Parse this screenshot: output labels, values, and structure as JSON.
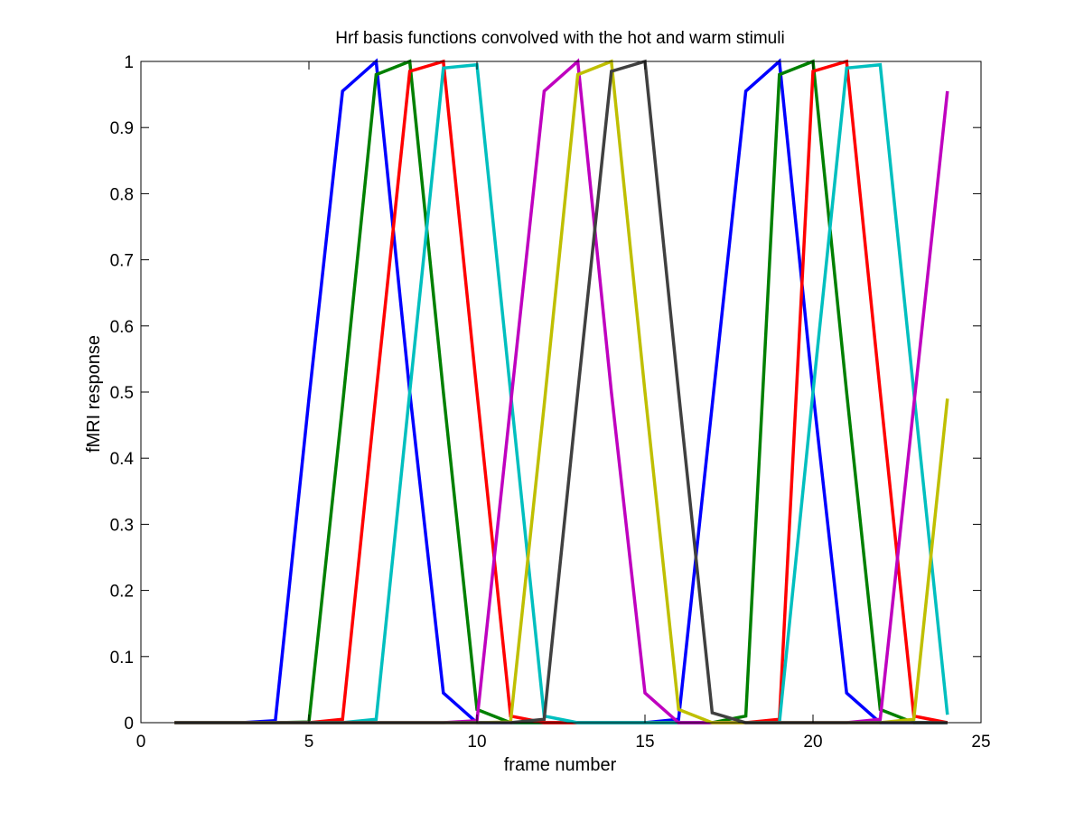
{
  "chart_data": {
    "type": "line",
    "title": "Hrf basis functions convolved with the hot and warm stimuli",
    "xlabel": "frame number",
    "ylabel": "fMRI response",
    "xlim": [
      0,
      25
    ],
    "ylim": [
      0,
      1
    ],
    "xticks": [
      0,
      5,
      10,
      15,
      20,
      25
    ],
    "yticks": [
      0,
      0.1,
      0.2,
      0.3,
      0.4,
      0.5,
      0.6,
      0.7,
      0.8,
      0.9,
      1
    ],
    "grid": false,
    "legend": "none",
    "series": [
      {
        "color": "#0000ff",
        "x": [
          1,
          2,
          3,
          4,
          5,
          6,
          7,
          8,
          9,
          10,
          11,
          12,
          13,
          14,
          15,
          16,
          17,
          18,
          19,
          20,
          21,
          22,
          23,
          24
        ],
        "y": [
          0,
          0,
          0,
          0.003,
          0.49,
          0.955,
          1.0,
          0.5,
          0.045,
          0,
          0,
          0,
          0,
          0,
          0,
          0.005,
          0.48,
          0.955,
          1.0,
          0.5,
          0.045,
          0,
          0,
          0
        ]
      },
      {
        "color": "#008000",
        "x": [
          1,
          2,
          3,
          4,
          5,
          6,
          7,
          8,
          9,
          10,
          11,
          12,
          13,
          14,
          15,
          16,
          17,
          18,
          19,
          20,
          21,
          22,
          23,
          24
        ],
        "y": [
          0,
          0,
          0,
          0,
          0.001,
          0.48,
          0.98,
          1.0,
          0.5,
          0.02,
          0,
          0,
          0,
          0,
          0,
          0,
          0,
          0.01,
          0.98,
          1.0,
          0.5,
          0.02,
          0,
          0
        ]
      },
      {
        "color": "#ff0000",
        "x": [
          1,
          2,
          3,
          4,
          5,
          6,
          7,
          8,
          9,
          10,
          11,
          12,
          13,
          14,
          15,
          16,
          17,
          18,
          19,
          20,
          21,
          22,
          23,
          24
        ],
        "y": [
          0,
          0,
          0,
          0,
          0,
          0.005,
          0.5,
          0.985,
          1.0,
          0.5,
          0.01,
          0,
          0,
          0,
          0,
          0,
          0,
          0,
          0.005,
          0.985,
          1.0,
          0.5,
          0.01,
          0
        ]
      },
      {
        "color": "#00bfbf",
        "x": [
          1,
          2,
          3,
          4,
          5,
          6,
          7,
          8,
          9,
          10,
          11,
          12,
          13,
          14,
          15,
          16,
          17,
          18,
          19,
          20,
          21,
          22,
          23,
          24
        ],
        "y": [
          0,
          0,
          0,
          0,
          0,
          0,
          0.005,
          0.5,
          0.99,
          0.995,
          0.5,
          0.01,
          0,
          0,
          0,
          0,
          0,
          0,
          0,
          0.5,
          0.99,
          0.995,
          0.5,
          0.012
        ]
      },
      {
        "color": "#bf00bf",
        "x": [
          1,
          2,
          3,
          4,
          5,
          6,
          7,
          8,
          9,
          10,
          11,
          12,
          13,
          14,
          15,
          16,
          17,
          18,
          19,
          20,
          21,
          22,
          23,
          24
        ],
        "y": [
          0,
          0,
          0,
          0,
          0,
          0,
          0,
          0,
          0,
          0.003,
          0.48,
          0.955,
          1.0,
          0.5,
          0.045,
          0,
          0,
          0,
          0,
          0,
          0,
          0.005,
          0.48,
          0.955
        ]
      },
      {
        "color": "#bfbf00",
        "x": [
          1,
          2,
          3,
          4,
          5,
          6,
          7,
          8,
          9,
          10,
          11,
          12,
          13,
          14,
          15,
          16,
          17,
          18,
          19,
          20,
          21,
          22,
          23,
          24
        ],
        "y": [
          0,
          0,
          0,
          0,
          0,
          0,
          0,
          0,
          0,
          0,
          0.001,
          0.48,
          0.98,
          1.0,
          0.5,
          0.02,
          0,
          0,
          0,
          0,
          0,
          0,
          0.005,
          0.49
        ]
      },
      {
        "color": "#404040",
        "x": [
          1,
          2,
          3,
          4,
          5,
          6,
          7,
          8,
          9,
          10,
          11,
          12,
          13,
          14,
          15,
          16,
          17,
          18,
          19,
          20,
          21,
          22,
          23,
          24
        ],
        "y": [
          0,
          0,
          0,
          0,
          0,
          0,
          0,
          0,
          0,
          0,
          0,
          0.005,
          0.5,
          0.985,
          1.0,
          0.5,
          0.015,
          0,
          0,
          0,
          0,
          0,
          0,
          0
        ]
      }
    ]
  }
}
